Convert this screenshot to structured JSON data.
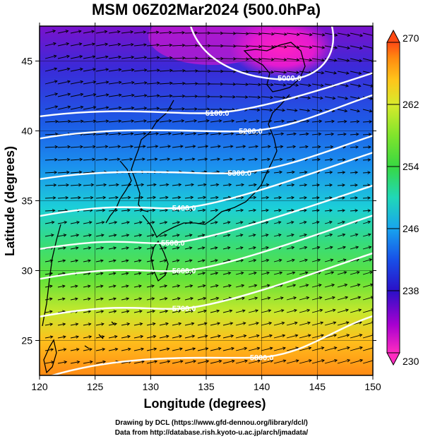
{
  "title": "MSM 06Z02Mar2024 (500.0hPa)",
  "xlabel": "Longitude (degrees)",
  "ylabel": "Latitude  (degrees)",
  "credits": {
    "line1": "Drawing by DCL (https://www.gfd-dennou.org/library/dcl/)",
    "line2": "Data from http://database.rish.kyoto-u.ac.jp/arch/jmadata/"
  },
  "map": {
    "lon_range": [
      120,
      150
    ],
    "lat_range": [
      22.5,
      47.5
    ],
    "lon_ticks": [
      120,
      125,
      130,
      135,
      140,
      145,
      150
    ],
    "lat_ticks": [
      25,
      30,
      35,
      40,
      45
    ],
    "lon_tick_labels": [
      "120",
      "125",
      "130",
      "135",
      "140",
      "145",
      "150"
    ],
    "lat_tick_labels": [
      "25",
      "30",
      "35",
      "40",
      "45"
    ],
    "gridlines": true,
    "variable_shading": "temperature (K)",
    "contour_variable": "geopotential height (m)",
    "contours": [
      {
        "label": "5100.0",
        "label_lon": 136.0,
        "label_lat": 41.3
      },
      {
        "label": "5200.0",
        "label_lon": 139.0,
        "label_lat": 40.0
      },
      {
        "label": "5300.0",
        "label_lon": 138.0,
        "label_lat": 37.0
      },
      {
        "label": "5400.0",
        "label_lon": 133.0,
        "label_lat": 34.5
      },
      {
        "label": "5500.0",
        "label_lon": 132.0,
        "label_lat": 32.0
      },
      {
        "label": "5600.0",
        "label_lon": 133.0,
        "label_lat": 30.0
      },
      {
        "label": "5700.0",
        "label_lon": 133.0,
        "label_lat": 27.3
      },
      {
        "label": "5800.0",
        "label_lon": 140.0,
        "label_lat": 23.8
      },
      {
        "label": "5000.0",
        "label_lon": 142.5,
        "label_lat": 43.8
      }
    ],
    "wind_vectors": true
  },
  "colorbar": {
    "min": 230,
    "max": 270,
    "tick_values": [
      230,
      238,
      246,
      254,
      262,
      270
    ],
    "tick_labels": [
      "230",
      "238",
      "246",
      "254",
      "262",
      "270"
    ],
    "colormap": [
      "#ff2cc0",
      "#a800d0",
      "#4a1cd8",
      "#1a56e8",
      "#1aa8ee",
      "#22d8c0",
      "#44dd44",
      "#8ee82e",
      "#d8ea2c",
      "#ffc21a",
      "#ff8a10",
      "#ff4a14"
    ]
  }
}
